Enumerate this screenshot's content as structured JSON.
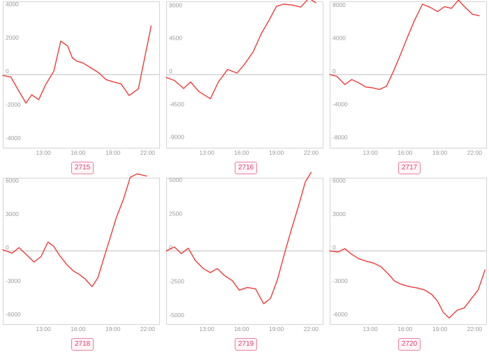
{
  "colors": {
    "line": "#f03a3a",
    "frame": "#d4d4d4",
    "zero_line": "#bdbdbd",
    "badge_border": "#e8809c",
    "badge_text": "#e0406e",
    "badge_bg": "#fff5f8"
  },
  "chart_data": [
    {
      "type": "line",
      "label": "2715",
      "xlim": [
        9.5,
        23.0
      ],
      "xticks": [
        13,
        16,
        19,
        22
      ],
      "xtick_labels": [
        "13:00",
        "16:00",
        "19:00",
        "22:00"
      ],
      "ylim": [
        -4200,
        4200
      ],
      "yticks": [
        4000,
        2000,
        0,
        -2000,
        -4000
      ],
      "ytick_labels": [
        "4000",
        "2000",
        "0",
        "-2000",
        "-4000"
      ],
      "series": [
        {
          "x": [
            9.5,
            10.2,
            10.9,
            11.5,
            12.0,
            12.6,
            13.2,
            13.9,
            14.5,
            15.1,
            15.5,
            15.9,
            16.4,
            17.1,
            17.8,
            18.4,
            19.1,
            19.7,
            20.4,
            21.2,
            22.3
          ],
          "y": [
            -50,
            -150,
            -1000,
            -1700,
            -1200,
            -1500,
            -600,
            200,
            2000,
            1700,
            1000,
            800,
            700,
            400,
            100,
            -300,
            -450,
            -550,
            -1250,
            -850,
            2900
          ]
        }
      ]
    },
    {
      "type": "line",
      "label": "2716",
      "xlim": [
        9.5,
        23.0
      ],
      "xticks": [
        13,
        16,
        19,
        22
      ],
      "xtick_labels": [
        "13:00",
        "16:00",
        "19:00",
        "22:00"
      ],
      "ylim": [
        -9600,
        9600
      ],
      "yticks": [
        9000,
        4500,
        0,
        -4500,
        -9000
      ],
      "ytick_labels": [
        "9000",
        "4500",
        "0",
        "-4500",
        "-9000"
      ],
      "series": [
        {
          "x": [
            9.5,
            10.2,
            11.0,
            11.6,
            12.3,
            13.3,
            14.0,
            14.8,
            15.6,
            16.2,
            17.0,
            17.7,
            18.4,
            19.0,
            19.6,
            20.3,
            21.1,
            21.8,
            22.4
          ],
          "y": [
            -400,
            -800,
            -1900,
            -1000,
            -2300,
            -3300,
            -1000,
            700,
            200,
            1300,
            3100,
            5600,
            7500,
            9300,
            9600,
            9500,
            9200,
            10400,
            9800
          ]
        }
      ]
    },
    {
      "type": "line",
      "label": "2717",
      "xlim": [
        9.5,
        23.0
      ],
      "xticks": [
        13,
        16,
        19,
        22
      ],
      "xtick_labels": [
        "13:00",
        "16:00",
        "19:00",
        "22:00"
      ],
      "ylim": [
        -8500,
        8500
      ],
      "yticks": [
        8000,
        4000,
        0,
        -4000,
        -8000
      ],
      "ytick_labels": [
        "8000",
        "4000",
        "0",
        "-4000",
        "-8000"
      ],
      "series": [
        {
          "x": [
            9.5,
            10.1,
            10.8,
            11.4,
            12.0,
            12.6,
            13.2,
            13.8,
            14.4,
            15.0,
            15.6,
            16.2,
            16.8,
            17.5,
            18.2,
            18.8,
            19.4,
            20.0,
            20.6,
            21.2,
            21.8,
            22.4
          ],
          "y": [
            0,
            -200,
            -1200,
            -600,
            -1000,
            -1500,
            -1600,
            -1800,
            -1400,
            400,
            2400,
            4500,
            6500,
            8500,
            8100,
            7600,
            8200,
            8000,
            9000,
            8100,
            7300,
            7100
          ]
        }
      ]
    },
    {
      "type": "line",
      "label": "2718",
      "xlim": [
        9.5,
        23.0
      ],
      "xticks": [
        13,
        16,
        19,
        22
      ],
      "xtick_labels": [
        "13:00",
        "16:00",
        "19:00",
        "22:00"
      ],
      "ylim": [
        -6300,
        6300
      ],
      "yticks": [
        6000,
        3000,
        0,
        -3000,
        -6000
      ],
      "ytick_labels": [
        "6000",
        "3000",
        "0",
        "-3000",
        "-6000"
      ],
      "series": [
        {
          "x": [
            9.5,
            10.3,
            10.9,
            11.6,
            12.2,
            12.8,
            13.4,
            13.9,
            14.4,
            15.0,
            15.6,
            16.1,
            16.6,
            17.2,
            17.7,
            18.2,
            18.8,
            19.3,
            19.9,
            20.5,
            21.1,
            21.9
          ],
          "y": [
            100,
            -200,
            300,
            -400,
            -1000,
            -500,
            800,
            400,
            -400,
            -1200,
            -1800,
            -2100,
            -2500,
            -3200,
            -2400,
            -700,
            1300,
            3000,
            4600,
            6600,
            6900,
            6700
          ]
        }
      ]
    },
    {
      "type": "line",
      "label": "2719",
      "xlim": [
        9.5,
        23.0
      ],
      "xticks": [
        13,
        16,
        19,
        22
      ],
      "xtick_labels": [
        "13:00",
        "16:00",
        "19:00",
        "22:00"
      ],
      "ylim": [
        -5200,
        5200
      ],
      "yticks": [
        5000,
        2500,
        0,
        -2500,
        -5000
      ],
      "ytick_labels": [
        "5000",
        "2500",
        "0",
        "-2500",
        "-5000"
      ],
      "series": [
        {
          "x": [
            9.5,
            10.2,
            10.8,
            11.4,
            12.0,
            12.7,
            13.3,
            13.9,
            14.5,
            15.2,
            15.8,
            16.5,
            17.2,
            17.9,
            18.5,
            19.1,
            19.7,
            20.3,
            20.9,
            21.5,
            22.0
          ],
          "y": [
            0,
            300,
            -200,
            200,
            -700,
            -1300,
            -1600,
            -1300,
            -1800,
            -2200,
            -2900,
            -2700,
            -2800,
            -3900,
            -3500,
            -2100,
            -200,
            1600,
            3300,
            5100,
            5800
          ]
        }
      ]
    },
    {
      "type": "line",
      "label": "2720",
      "xlim": [
        9.5,
        23.0
      ],
      "xticks": [
        13,
        16,
        19,
        22
      ],
      "xtick_labels": [
        "13:00",
        "16:00",
        "19:00",
        "22:00"
      ],
      "ylim": [
        -6300,
        6300
      ],
      "yticks": [
        6000,
        3000,
        0,
        -3000,
        -6000
      ],
      "ytick_labels": [
        "6000",
        "3000",
        "0",
        "-3000",
        "-6000"
      ],
      "series": [
        {
          "x": [
            9.5,
            10.2,
            10.8,
            11.4,
            12.0,
            12.6,
            13.3,
            13.9,
            14.5,
            15.1,
            15.7,
            16.4,
            17.0,
            17.7,
            18.3,
            18.8,
            19.3,
            19.8,
            20.5,
            21.1,
            21.7,
            22.3,
            22.9
          ],
          "y": [
            0,
            -100,
            200,
            -300,
            -700,
            -900,
            -1100,
            -1400,
            -2000,
            -2700,
            -3000,
            -3200,
            -3300,
            -3500,
            -3900,
            -4500,
            -5500,
            -6000,
            -5300,
            -5100,
            -4300,
            -3500,
            -1700
          ]
        }
      ]
    }
  ]
}
